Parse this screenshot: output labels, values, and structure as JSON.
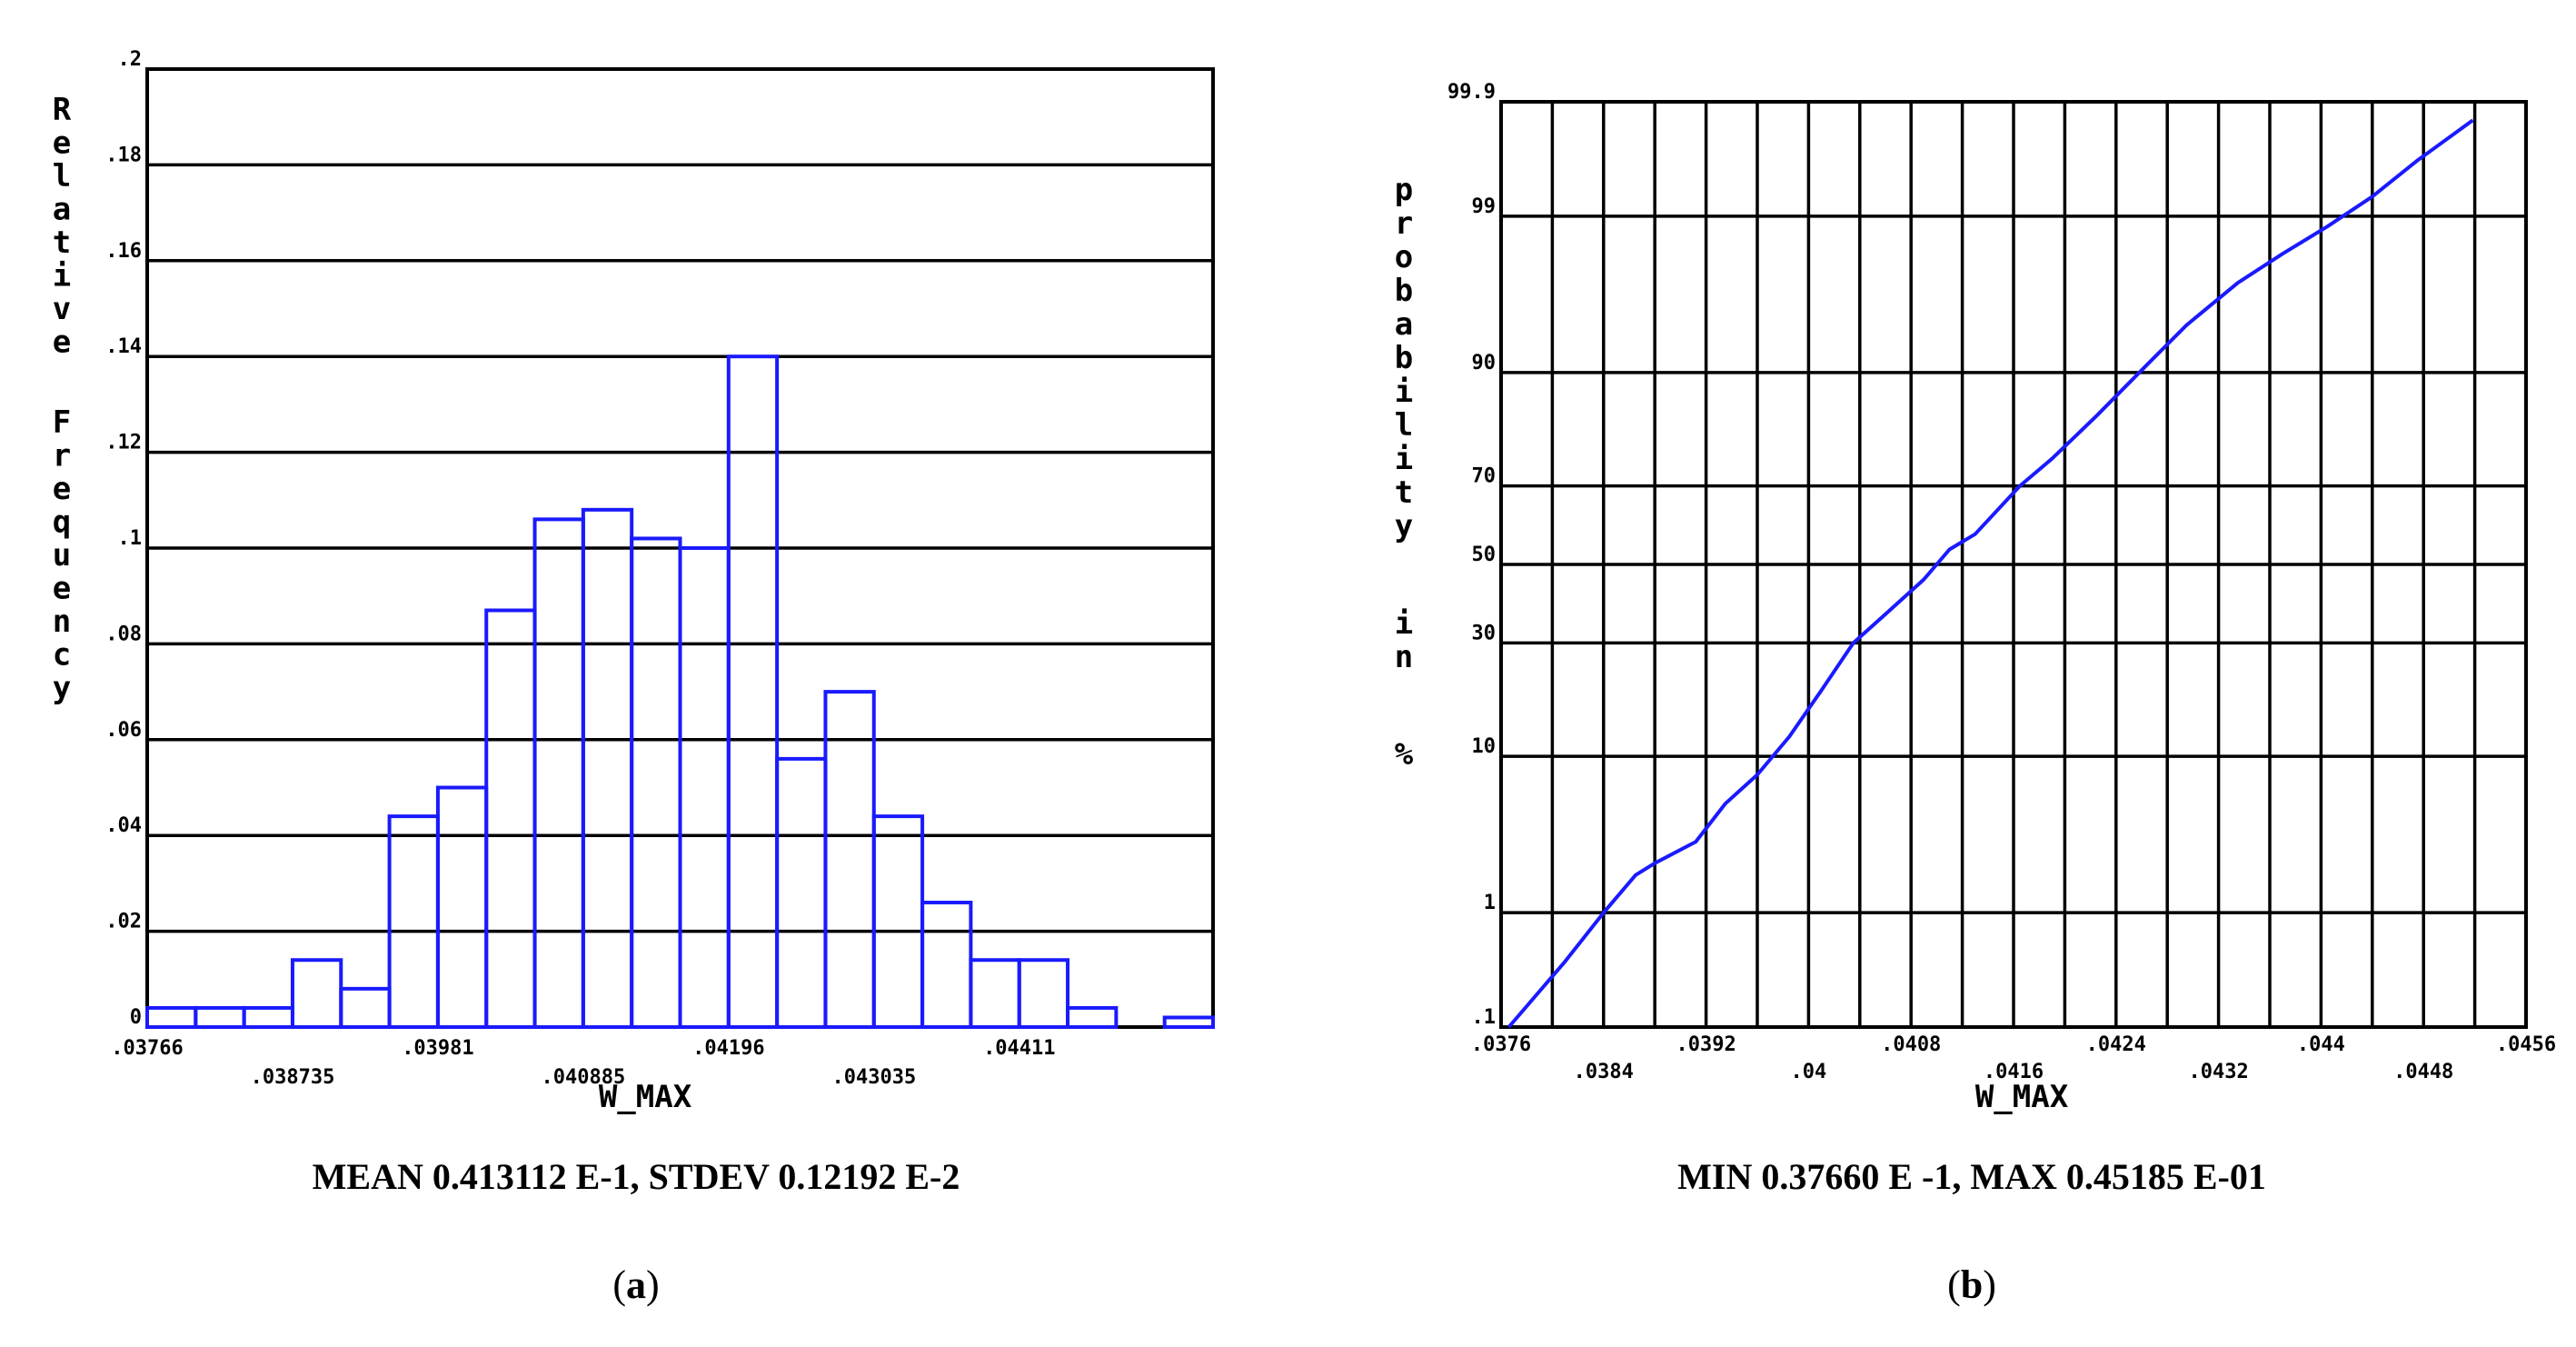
{
  "chart_data": [
    {
      "type": "bar",
      "panel_label": "a",
      "ylabel": "Relative Frequency",
      "xlabel": "W_MAX",
      "caption": "MEAN 0.413112 E-1, STDEV 0.12192 E-2",
      "ylim": [
        0,
        0.2
      ],
      "y_ticks": [
        "0",
        ".02",
        ".04",
        ".06",
        ".08",
        ".1",
        ".12",
        ".14",
        ".16",
        ".18",
        ".2"
      ],
      "x_tick_labels_upper": [
        ".03766",
        ".03981",
        ".04196",
        ".04411"
      ],
      "x_tick_labels_lower": [
        ".038735",
        ".040885",
        ".043035"
      ],
      "bin_start": 0.03766,
      "bin_width": 0.0003583,
      "grid": true,
      "values": [
        0.004,
        0.004,
        0.004,
        0.014,
        0.008,
        0.044,
        0.05,
        0.087,
        0.106,
        0.108,
        0.102,
        0.1,
        0.14,
        0.056,
        0.07,
        0.044,
        0.026,
        0.014,
        0.014,
        0.004,
        0.0,
        0.002
      ]
    },
    {
      "type": "line",
      "panel_label": "b",
      "ylabel": "probability in %",
      "xlabel": "W_MAX",
      "caption": "MIN 0.37660 E -1, MAX 0.45185 E-01",
      "y_scale": "normal-probability",
      "y_ticks": [
        ".1",
        "1",
        "10",
        "30",
        "50",
        "70",
        "90",
        "99",
        "99.9"
      ],
      "x_ticks_upper": [
        ".0376",
        ".0392",
        ".0408",
        ".0424",
        ".044",
        ".0456"
      ],
      "x_ticks_lower": [
        ".0384",
        ".04",
        ".0416",
        ".0432",
        ".0448"
      ],
      "xlim": [
        0.0376,
        0.0456
      ],
      "grid": true,
      "x": [
        0.03766,
        0.0381,
        0.0384,
        0.03865,
        0.0388,
        0.03912,
        0.03935,
        0.0396,
        0.03985,
        0.0401,
        0.04035,
        0.0406,
        0.0409,
        0.0411,
        0.0413,
        0.04165,
        0.0419,
        0.04225,
        0.04265,
        0.04295,
        0.04335,
        0.0437,
        0.04405,
        0.0444,
        0.04475,
        0.045185
      ],
      "y": [
        0.1,
        0.4,
        1.0,
        1.9,
        2.3,
        3.2,
        5.5,
        8.0,
        12.5,
        20.0,
        30.0,
        37.0,
        46.0,
        54.0,
        58.0,
        70.0,
        76.0,
        84.0,
        91.0,
        94.5,
        97.0,
        98.1,
        98.8,
        99.3,
        99.65,
        99.85
      ]
    }
  ]
}
